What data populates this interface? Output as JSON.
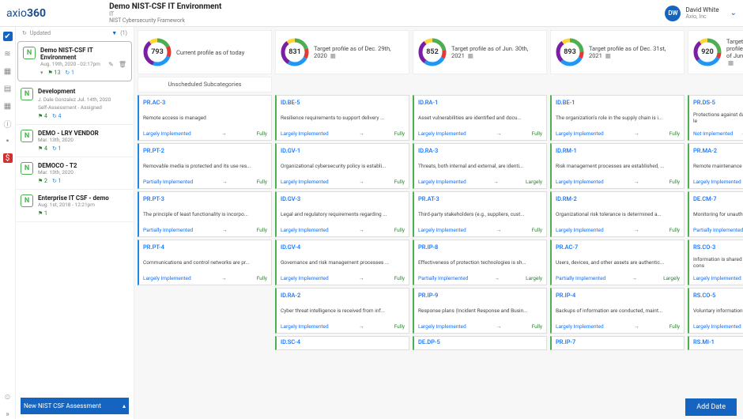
{
  "brand": {
    "name": "axio",
    "suffix": "360"
  },
  "header": {
    "title": "Demo NIST-CSF IT Environment",
    "subtitle1": "IT",
    "subtitle2": "NIST Cybersecurity Framework"
  },
  "user": {
    "initials": "DW",
    "name": "David White",
    "org": "Axio, Inc"
  },
  "sidebar": {
    "updated": "Updated",
    "filter": "(1)",
    "envs": [
      {
        "title": "Demo NIST-CSF IT Environment",
        "date": "Aug. 19th, 2020 - 02:17pm",
        "stat1": "13",
        "stat2": "1",
        "selected": true
      },
      {
        "title": "Development",
        "meta": "J. Dale Gonzalez  Jul. 14th, 2020",
        "meta2": "Self-Assessment - Assigned",
        "stat1": "4",
        "stat2": "4"
      },
      {
        "title": "DEMO - LRY VENDOR",
        "date": "Mar. 13th, 2020",
        "stat1": "4",
        "stat2": "1"
      },
      {
        "title": "DEMOCO - T2",
        "date": "Mar. 13th, 2020",
        "stat1": "2",
        "stat2": "1"
      },
      {
        "title": "Enterprise IT CSF - demo",
        "date": "Aug. 1st, 2018 - 12:21pm",
        "stat1": "1"
      }
    ],
    "newbtn": "New NIST CSF Assessment"
  },
  "colors": {
    "blue": "#1e88e5",
    "green": "#4caf50",
    "yellow": "#fdd835",
    "red": "#e53935",
    "purple": "#7b1fa2",
    "orange": "#ff9800"
  },
  "columns": [
    {
      "score": "793",
      "title": "Current profile as of today",
      "subhead": "Unscheduled Subcategories",
      "donut": [
        [
          "#4caf50",
          50
        ],
        [
          "#e53935",
          40
        ],
        [
          "#2196f3",
          70
        ],
        [
          "#7b1fa2",
          100
        ],
        [
          "#fdd835",
          30
        ]
      ],
      "cards": [
        {
          "id": "PR.AC-3",
          "desc": "Remote access is managed",
          "left": "Largely Implemented",
          "right": "Fully",
          "bc": "#1e88e5"
        },
        {
          "id": "PR.PT-2",
          "desc": "Removable media is protected and its use res...",
          "left": "Partially Implemented",
          "right": "Fully",
          "bc": "#1e88e5"
        },
        {
          "id": "PR.PT-3",
          "desc": "The principle of least functionality is incorpo...",
          "left": "Partially Implemented",
          "right": "Fully",
          "bc": "#1e88e5"
        },
        {
          "id": "PR.PT-4",
          "desc": "Communications and control networks are pr...",
          "left": "Largely Implemented",
          "right": "Fully",
          "bc": "#1e88e5"
        }
      ]
    },
    {
      "score": "831",
      "title": "Target profile as of Dec. 29th, 2020",
      "cal": true,
      "donut": [
        [
          "#4caf50",
          60
        ],
        [
          "#e53935",
          35
        ],
        [
          "#2196f3",
          75
        ],
        [
          "#7b1fa2",
          90
        ],
        [
          "#fdd835",
          30
        ]
      ],
      "cards": [
        {
          "id": "ID.BE-5",
          "desc": "Resilience requirements to support delivery ...",
          "left": "Largely Implemented",
          "right": "Fully",
          "bc": "#4caf50"
        },
        {
          "id": "ID.GV-1",
          "desc": "Organizational cybersecurity policy is establi...",
          "left": "Largely Implemented",
          "right": "Fully",
          "bc": "#4caf50"
        },
        {
          "id": "ID.GV-3",
          "desc": "Legal and regulatory requirements regarding ...",
          "left": "Largely Implemented",
          "right": "Fully",
          "bc": "#4caf50"
        },
        {
          "id": "ID.GV-4",
          "desc": "Governance and risk management processes ...",
          "left": "Largely Implemented",
          "right": "Fully",
          "bc": "#4caf50"
        },
        {
          "id": "ID.RA-2",
          "desc": "Cyber threat intelligence is received from inf...",
          "left": "Largely Implemented",
          "right": "Fully",
          "bc": "#4caf50"
        },
        {
          "id": "ID.SC-4",
          "short": true,
          "bc": "#4caf50"
        }
      ]
    },
    {
      "score": "852",
      "title": "Target profile as of Jun. 30th, 2021",
      "cal": true,
      "donut": [
        [
          "#4caf50",
          65
        ],
        [
          "#e53935",
          30
        ],
        [
          "#2196f3",
          80
        ],
        [
          "#7b1fa2",
          85
        ],
        [
          "#fdd835",
          30
        ]
      ],
      "cards": [
        {
          "id": "ID.RA-1",
          "desc": "Asset vulnerabilities are identified and docu...",
          "left": "Largely Implemented",
          "right": "Fully",
          "bc": "#4caf50"
        },
        {
          "id": "ID.RA-3",
          "desc": "Threats, both internal and external, are identi...",
          "left": "Largely Implemented",
          "right": "Largely",
          "bc": "#4caf50"
        },
        {
          "id": "PR.AT-3",
          "desc": "Third-party stakeholders (e.g., suppliers, cust...",
          "left": "Largely Implemented",
          "right": "Fully",
          "bc": "#4caf50"
        },
        {
          "id": "PR.IP-8",
          "desc": "Effectiveness of protection technologies is sh...",
          "left": "Partially Implemented",
          "right": "Largely",
          "bc": "#4caf50"
        },
        {
          "id": "PR.IP-9",
          "desc": "Response plans (Incident Response and Busin...",
          "left": "Largely Implemented",
          "right": "Fully",
          "bc": "#4caf50"
        },
        {
          "id": "DE.DP-5",
          "short": true,
          "bc": "#4caf50"
        }
      ]
    },
    {
      "score": "893",
      "title": "Target profile as of Dec. 31st, 2021",
      "cal": true,
      "donut": [
        [
          "#4caf50",
          70
        ],
        [
          "#e53935",
          25
        ],
        [
          "#2196f3",
          85
        ],
        [
          "#7b1fa2",
          80
        ],
        [
          "#fdd835",
          30
        ]
      ],
      "cards": [
        {
          "id": "ID.BE-1",
          "desc": "The organization's role in the supply chain is i...",
          "left": "Largely Implemented",
          "right": "Fully",
          "bc": "#4caf50"
        },
        {
          "id": "ID.RM-1",
          "desc": "Risk management processes are established, ...",
          "left": "Largely Implemented",
          "right": "Fully",
          "bc": "#4caf50"
        },
        {
          "id": "ID.RM-2",
          "desc": "Organizational risk tolerance is determined a...",
          "left": "Largely Implemented",
          "right": "Fully",
          "bc": "#4caf50"
        },
        {
          "id": "PR.AC-7",
          "desc": "Users, devices, and other assets are authentic...",
          "left": "Partially Implemented",
          "right": "Largely",
          "bc": "#4caf50"
        },
        {
          "id": "PR.IP-4",
          "desc": "Backups of information are conducted, maint...",
          "left": "Largely Implemented",
          "right": "Fully",
          "bc": "#4caf50"
        },
        {
          "id": "PR.IP-7",
          "short": true,
          "bc": "#4caf50"
        }
      ]
    },
    {
      "score": "920",
      "title": "Target profile as of Jun.",
      "cal": true,
      "partial": true,
      "donut": [
        [
          "#4caf50",
          75
        ],
        [
          "#e53935",
          20
        ],
        [
          "#2196f3",
          90
        ],
        [
          "#7b1fa2",
          75
        ],
        [
          "#fdd835",
          30
        ]
      ],
      "cards": [
        {
          "id": "PR.DS-5",
          "desc": "Protections against data le",
          "left": "Not Implemented",
          "right": "",
          "bc": "#4caf50"
        },
        {
          "id": "PR.MA-2",
          "desc": "Remote maintenance of or",
          "left": "Largely Implemented",
          "right": "",
          "bc": "#4caf50"
        },
        {
          "id": "DE.CM-7",
          "desc": "Monitoring for unauthoriz",
          "left": "Partially Implemented",
          "right": "",
          "bc": "#4caf50"
        },
        {
          "id": "RS.CO-3",
          "desc": "Information is shared cons",
          "left": "Largely Implemented",
          "right": "",
          "bc": "#4caf50"
        },
        {
          "id": "RS.CO-5",
          "desc": "Voluntary information sha",
          "left": "Largely Implemented",
          "right": "",
          "bc": "#4caf50"
        },
        {
          "id": "RS.MI-1",
          "short": true,
          "bc": "#4caf50"
        }
      ]
    }
  ],
  "adddate": "Add Date"
}
